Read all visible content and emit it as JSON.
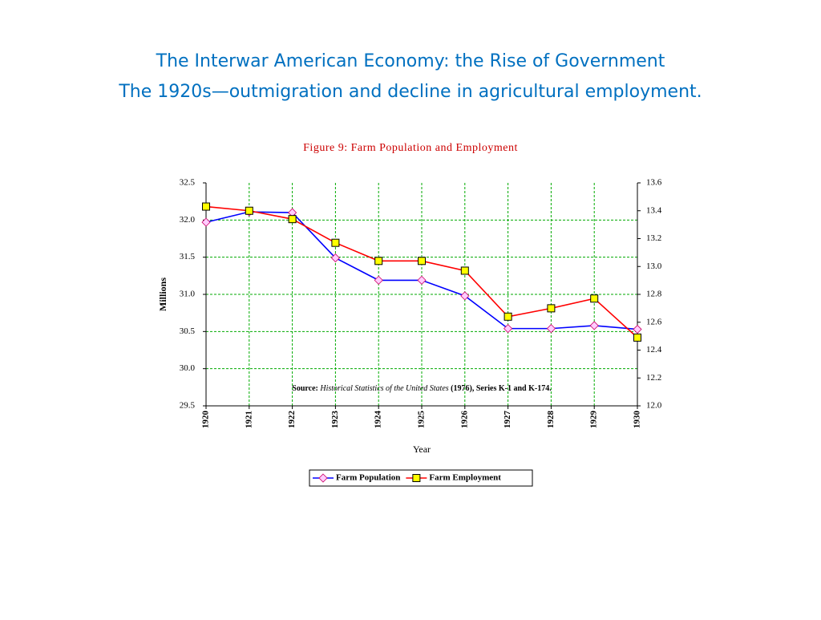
{
  "slide": {
    "title_line1": "The Interwar American Economy: the Rise of Government",
    "title_line2": "The 1920s—outmigration and decline in agricultural employment."
  },
  "chart_data": {
    "type": "line",
    "title": "Figure 9: Farm Population and Employment",
    "y_label": "Millions",
    "x_label": "Year",
    "source": {
      "prefix": "Source:",
      "title": "Historical Statistics of the United States",
      "suffix": "(1976), Series K-1 and K-174."
    },
    "categories": [
      "1920",
      "1921",
      "1922",
      "1923",
      "1924",
      "1925",
      "1926",
      "1927",
      "1928",
      "1929",
      "1930"
    ],
    "series": [
      {
        "name": "Farm Population",
        "color": "#0000ff",
        "marker": "diamond",
        "marker_fill": "#ffccff",
        "values": [
          31.97,
          32.11,
          32.1,
          31.49,
          31.19,
          31.19,
          30.98,
          30.54,
          30.54,
          30.58,
          30.53
        ]
      },
      {
        "name": "Farm Employment",
        "color": "#ff0000",
        "marker": "square",
        "marker_fill": "#ffff00",
        "axis": "y2",
        "values": [
          13.43,
          13.4,
          13.34,
          13.17,
          13.04,
          13.04,
          12.97,
          12.64,
          12.7,
          12.77,
          12.49
        ]
      }
    ],
    "ylim": [
      29.5,
      32.5
    ],
    "yticks": [
      29.5,
      {
        "value": 30,
        "label": "30.0"
      },
      30.5,
      {
        "value": 31,
        "label": "31.0"
      },
      31.5,
      {
        "value": 32,
        "label": "32.0"
      },
      32.5
    ],
    "y2lim": [
      12,
      13.6
    ],
    "y2ticks": [
      {
        "value": 12,
        "label": "12.0"
      },
      12.2,
      12.4,
      12.6,
      12.8,
      {
        "value": 13,
        "label": "13.0"
      },
      13.2,
      13.4,
      13.6
    ],
    "grid": true,
    "grid_color": "#00aa00",
    "title_color": "#cc0000",
    "legend": "bottom"
  }
}
